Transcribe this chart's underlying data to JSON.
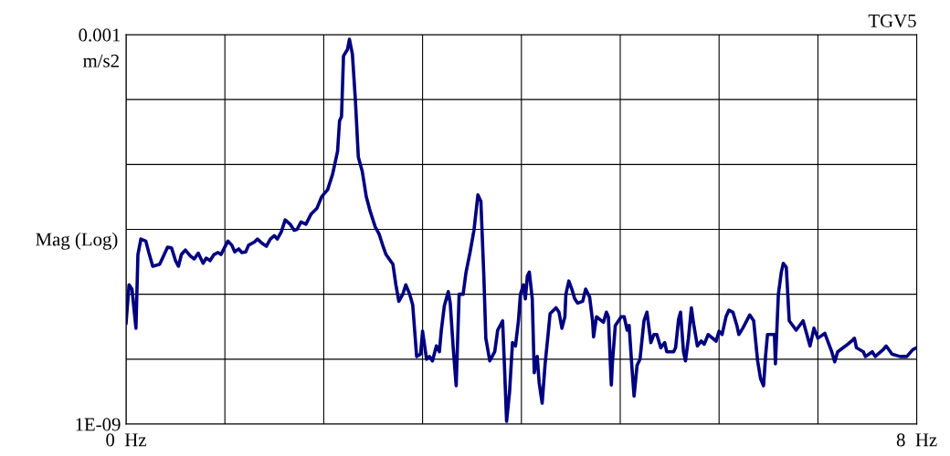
{
  "chart_data": {
    "type": "line",
    "title": "TGV5",
    "ylabel": "Mag (Log)",
    "log": "y",
    "grid": true,
    "marker": "none",
    "line_style": "solid",
    "xlim": [
      0,
      8
    ],
    "xticks": [
      {
        "value": 0,
        "label": "0  Hz"
      },
      {
        "value": 1,
        "label": null
      },
      {
        "value": 2,
        "label": null
      },
      {
        "value": 3,
        "label": null
      },
      {
        "value": 4,
        "label": null
      },
      {
        "value": 5,
        "label": null
      },
      {
        "value": 6,
        "label": null
      },
      {
        "value": 7,
        "label": null
      },
      {
        "value": 8,
        "label": "8  Hz"
      }
    ],
    "ylim": [
      1e-09,
      0.001
    ],
    "yticks": [
      {
        "value": 1e-09,
        "label": "1E-09"
      },
      {
        "value": 1e-08,
        "label": null
      },
      {
        "value": 1e-07,
        "label": null
      },
      {
        "value": 1e-06,
        "label": null
      },
      {
        "value": 1e-05,
        "label": null
      },
      {
        "value": 0.0001,
        "label": null
      },
      0.001
    ],
    "annotations": [
      "m/s2"
    ],
    "series": [
      {
        "color": "#000080",
        "x": [
          0,
          0.03,
          0.06,
          0.1,
          0.12,
          0.15,
          0.2,
          0.23,
          0.27,
          0.34,
          0.38,
          0.42,
          0.46,
          0.5,
          0.53,
          0.56,
          0.6,
          0.65,
          0.69,
          0.73,
          0.78,
          0.81,
          0.85,
          0.89,
          0.93,
          0.96,
          0.99,
          1.03,
          1.07,
          1.1,
          1.14,
          1.17,
          1.21,
          1.24,
          1.3,
          1.33,
          1.37,
          1.42,
          1.46,
          1.5,
          1.53,
          1.57,
          1.61,
          1.66,
          1.7,
          1.73,
          1.77,
          1.82,
          1.87,
          1.93,
          1.98,
          2.04,
          2.09,
          2.14,
          2.16,
          2.18,
          2.2,
          2.24,
          2.26,
          2.29,
          2.32,
          2.35,
          2.39,
          2.43,
          2.47,
          2.52,
          2.56,
          2.6,
          2.63,
          2.7,
          2.73,
          2.76,
          2.8,
          2.83,
          2.87,
          2.9,
          2.94,
          2.98,
          3.0,
          3.04,
          3.07,
          3.1,
          3.14,
          3.17,
          3.19,
          3.22,
          3.26,
          3.28,
          3.31,
          3.34,
          3.37,
          3.41,
          3.44,
          3.48,
          3.52,
          3.56,
          3.59,
          3.62,
          3.64,
          3.68,
          3.73,
          3.76,
          3.81,
          3.83,
          3.85,
          3.88,
          3.91,
          3.94,
          3.97,
          3.99,
          4.02,
          4.04,
          4.06,
          4.08,
          4.11,
          4.13,
          4.16,
          4.18,
          4.21,
          4.24,
          4.27,
          4.29,
          4.35,
          4.38,
          4.41,
          4.44,
          4.45,
          4.48,
          4.51,
          4.54,
          4.57,
          4.62,
          4.65,
          4.69,
          4.72,
          4.73,
          4.76,
          4.83,
          4.86,
          4.88,
          4.91,
          4.92,
          4.95,
          5.01,
          5.04,
          5.07,
          5.09,
          5.12,
          5.14,
          5.17,
          5.2,
          5.24,
          5.27,
          5.31,
          5.34,
          5.37,
          5.41,
          5.45,
          5.47,
          5.54,
          5.56,
          5.59,
          5.61,
          5.64,
          5.66,
          5.69,
          5.72,
          5.74,
          5.78,
          5.82,
          5.85,
          5.89,
          5.97,
          6.0,
          6.03,
          6.07,
          6.1,
          6.14,
          6.18,
          6.2,
          6.24,
          6.31,
          6.35,
          6.39,
          6.42,
          6.45,
          6.47,
          6.49,
          6.56,
          6.57,
          6.6,
          6.63,
          6.65,
          6.68,
          6.71,
          6.78,
          6.85,
          6.92,
          6.96,
          7.0,
          7.07,
          7.14,
          7.17,
          7.2,
          7.28,
          7.34,
          7.37,
          7.39,
          7.46,
          7.48,
          7.55,
          7.58,
          7.66,
          7.69,
          7.75,
          7.83,
          7.9,
          7.96,
          8.0
        ],
        "values": [
          3.6e-08,
          1.4e-07,
          1.2e-07,
          3e-08,
          4.1e-07,
          7.1e-07,
          6.6e-07,
          4.4e-07,
          2.7e-07,
          2.9e-07,
          3.9e-07,
          5.3e-07,
          5.2e-07,
          3.3e-07,
          2.7e-07,
          4.1e-07,
          4.8e-07,
          3.9e-07,
          3.5e-07,
          4.3e-07,
          3e-07,
          3.6e-07,
          3.3e-07,
          4.1e-07,
          4.4e-07,
          4.1e-07,
          5e-07,
          6.6e-07,
          5.7e-07,
          4.5e-07,
          5e-07,
          4.4e-07,
          4.5e-07,
          5.7e-07,
          6.4e-07,
          7.1e-07,
          6.2e-07,
          5.5e-07,
          7.1e-07,
          8e-07,
          7.1e-07,
          9.1e-07,
          1.4e-06,
          1.2e-06,
          9.7e-07,
          1e-06,
          1.3e-06,
          1.2e-06,
          1.7e-06,
          2.1e-06,
          3.2e-06,
          4.1e-06,
          7.1e-06,
          1.6e-05,
          4.7e-05,
          5.5e-05,
          0.00047,
          0.00059,
          0.00085,
          0.0005,
          0.0001,
          1.3e-05,
          7.8e-06,
          3.2e-06,
          1.9e-06,
          1.1e-06,
          8.5e-07,
          5.5e-07,
          4.1e-07,
          2.9e-07,
          1.4e-07,
          7.8e-08,
          1e-07,
          1.4e-07,
          1e-07,
          6.9e-08,
          1.1e-08,
          1.2e-08,
          2.7e-08,
          1e-08,
          1.1e-08,
          9.4e-09,
          1.6e-08,
          1.3e-08,
          2.8e-08,
          6.6e-08,
          1.1e-07,
          7.3e-08,
          1.5e-08,
          3.9e-09,
          1e-07,
          1e-07,
          2.2e-07,
          4.4e-07,
          9.7e-07,
          3.4e-06,
          2.7e-06,
          1.9e-07,
          2.1e-08,
          9.4e-09,
          1.3e-08,
          2.8e-08,
          3.9e-08,
          6.9e-09,
          1.1e-09,
          3.1e-09,
          1.8e-08,
          1.6e-08,
          3.9e-08,
          1e-07,
          1.4e-07,
          8.5e-08,
          1.9e-07,
          2.2e-07,
          8.5e-08,
          6.2e-09,
          1.1e-08,
          4.3e-09,
          2.1e-09,
          8.5e-09,
          2.4e-08,
          5e-08,
          6.2e-08,
          5.3e-08,
          3e-08,
          4.5e-08,
          1e-07,
          1.6e-07,
          1.2e-07,
          8.5e-08,
          7.3e-08,
          7.8e-08,
          1.2e-07,
          9.1e-08,
          3.9e-08,
          2.2e-08,
          4.5e-08,
          3.7e-08,
          5.3e-08,
          4.5e-08,
          4e-09,
          8.5e-09,
          3.3e-08,
          4.5e-08,
          4.5e-08,
          2.8e-08,
          3.3e-08,
          6.9e-09,
          2.7e-09,
          8e-09,
          1e-08,
          3.9e-08,
          5.3e-08,
          1.8e-08,
          2.4e-08,
          2.4e-08,
          1.5e-08,
          1.8e-08,
          1.3e-08,
          1.3e-08,
          1.5e-08,
          4.1e-08,
          5.3e-08,
          1.3e-08,
          9.4e-09,
          2.1e-08,
          6.2e-08,
          3.7e-08,
          1.6e-08,
          1.9e-08,
          1.7e-08,
          2.4e-08,
          1.9e-08,
          2.7e-08,
          2.4e-08,
          4.5e-08,
          5.7e-08,
          5.3e-08,
          3.3e-08,
          2.4e-08,
          3e-08,
          4.8e-08,
          3.9e-08,
          9.4e-09,
          5e-09,
          3.9e-09,
          1.1e-08,
          2.4e-08,
          2.4e-08,
          8.5e-09,
          1e-07,
          2.2e-07,
          3e-07,
          2.6e-07,
          3.9e-08,
          2.8e-08,
          3.9e-08,
          1.6e-08,
          3e-08,
          2.1e-08,
          2.5e-08,
          1.3e-08,
          9.1e-09,
          1.3e-08,
          1.6e-08,
          1.9e-08,
          2.1e-08,
          1.5e-08,
          1.3e-08,
          1.1e-08,
          1.3e-08,
          1.1e-08,
          1.4e-08,
          1.6e-08,
          1.2e-08,
          1.1e-08,
          1.1e-08,
          1.4e-08,
          1.5e-08
        ]
      }
    ]
  }
}
